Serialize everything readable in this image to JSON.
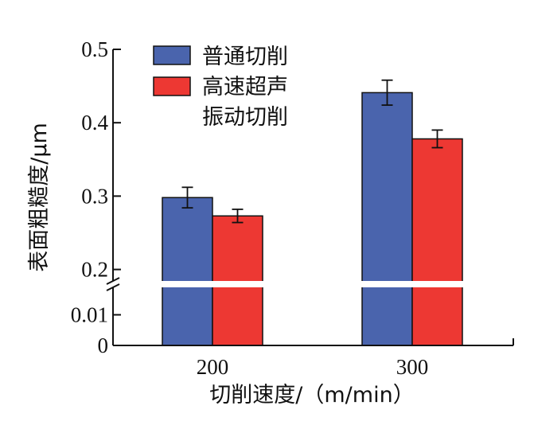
{
  "chart_data": {
    "type": "bar",
    "ylabel": "表面粗糙度/μm",
    "xlabel": "切削速度/（m/min）",
    "categories": [
      "200",
      "300"
    ],
    "series": [
      {
        "name": "普通切削",
        "color": "#4a64ad",
        "values": [
          0.298,
          0.441
        ],
        "errors": [
          0.014,
          0.017
        ]
      },
      {
        "name": "高速超声振动切削",
        "name_lines": [
          "高速超声",
          "振动切削"
        ],
        "color": "#ed3833",
        "values": [
          0.273,
          0.378
        ],
        "errors": [
          0.009,
          0.012
        ]
      }
    ],
    "y_axis": {
      "broken": true,
      "lower_segment": {
        "range": [
          0,
          0.02
        ],
        "ticks": [
          "0",
          "0.01"
        ]
      },
      "upper_segment": {
        "range": [
          0.18,
          0.5
        ],
        "ticks": [
          "0.2",
          "0.3",
          "0.4",
          "0.5"
        ]
      }
    },
    "legend_position": "top-left",
    "grid": false
  }
}
